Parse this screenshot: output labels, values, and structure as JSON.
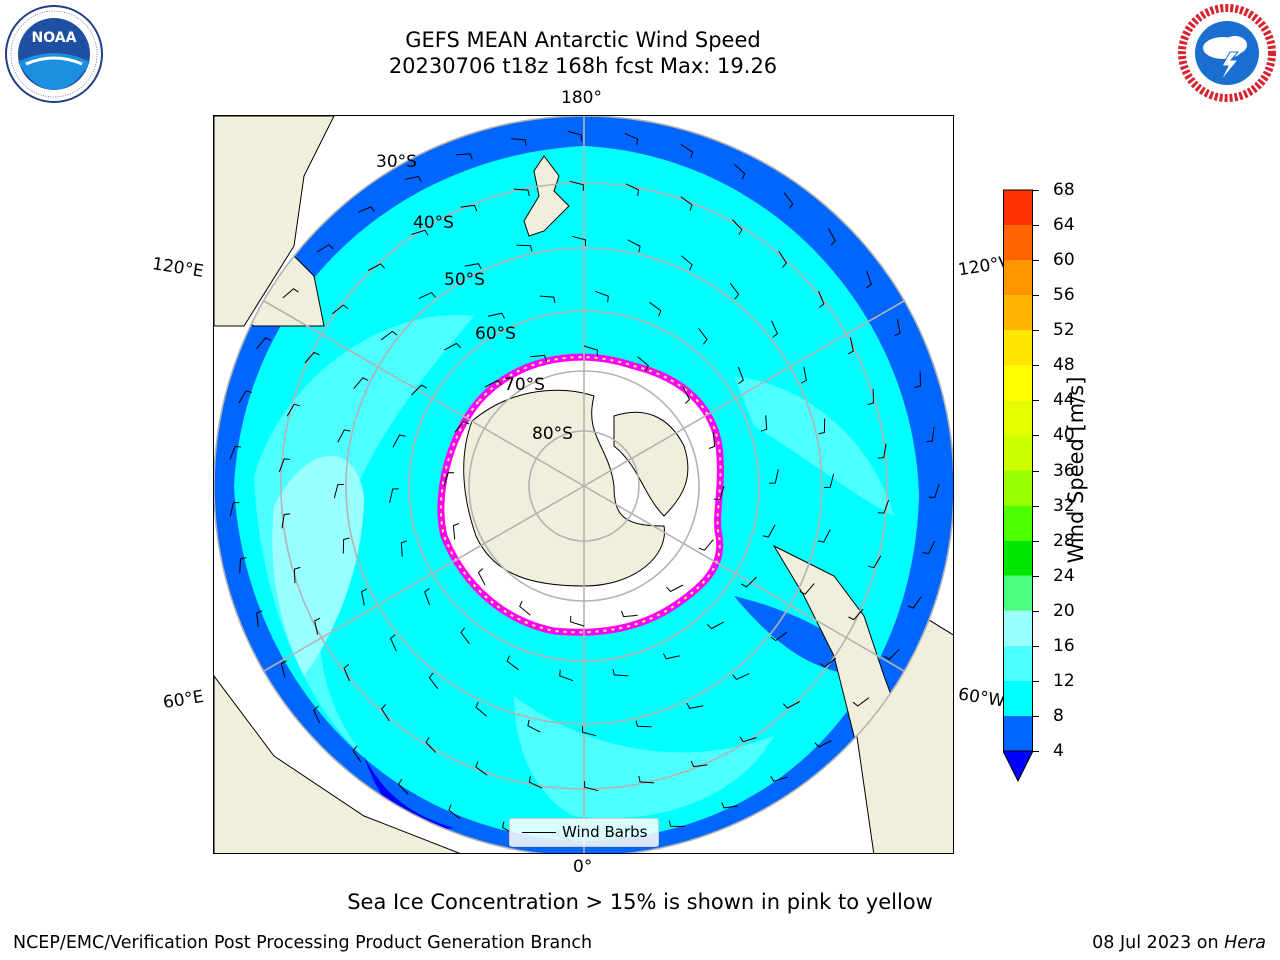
{
  "title": {
    "line1": "GEFS MEAN Antarctic Wind Speed",
    "line2": "20230706 t18z 168h fcst   Max: 19.26"
  },
  "logos": {
    "noaa": {
      "text": "NOAA",
      "ring_text": "NATIONAL OCEANIC AND ATMOSPHERIC ADMINISTRATION · U.S. DEPARTMENT OF COMMERCE",
      "icon": "noaa-logo"
    },
    "nws": {
      "ring_text": "NATIONAL WEATHER SERVICE",
      "icon": "nws-logo"
    }
  },
  "map": {
    "projection": "south-polar-stereographic",
    "longitude_labels": {
      "top": "180°",
      "bottom": "0°",
      "left_upper": "120°E",
      "left_lower": "60°E",
      "right_upper": "120°W",
      "right_lower": "60°W"
    },
    "latitude_labels": [
      "30°S",
      "40°S",
      "50°S",
      "60°S",
      "70°S",
      "80°S"
    ],
    "legend": {
      "label": "Wind Barbs"
    },
    "colors": {
      "land": "#efefdb",
      "sea_ice_low": "#ff00ff",
      "sea_ice_high": "#ffff66",
      "grid": "#b3b3b3"
    }
  },
  "colorbar": {
    "label": "Wind Speed [m/s]",
    "ticks": [
      "4",
      "8",
      "12",
      "16",
      "20",
      "24",
      "28",
      "32",
      "36",
      "40",
      "44",
      "48",
      "52",
      "56",
      "60",
      "64",
      "68"
    ],
    "colors": [
      "#0066ff",
      "#00ffff",
      "#4dffff",
      "#99ffff",
      "#4cff80",
      "#00e600",
      "#4dff00",
      "#99ff00",
      "#ccff00",
      "#e6ff00",
      "#ffff00",
      "#ffe600",
      "#ffb400",
      "#ff9600",
      "#ff6400",
      "#ff3200",
      "#ff0000"
    ],
    "under_color": "#0000ff"
  },
  "footer": {
    "note": "Sea Ice Concentration > 15% is shown in pink to yellow",
    "left": "NCEP/EMC/Verification Post Processing Product Generation Branch",
    "right_date": "08 Jul 2023 on ",
    "right_host": "Hera"
  }
}
